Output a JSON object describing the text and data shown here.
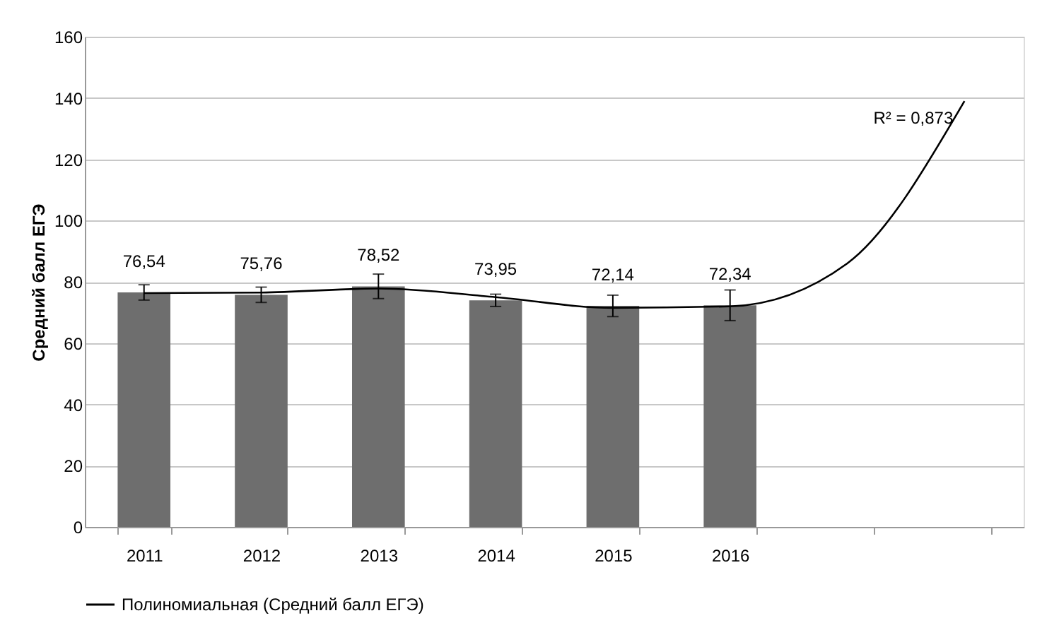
{
  "chart_data": {
    "type": "bar",
    "ylabel": "Средний балл ЕГЭ",
    "categories": [
      "2011",
      "2012",
      "2013",
      "2014",
      "2015",
      "2016",
      null,
      null
    ],
    "series": [
      {
        "color": "#6e6e6e",
        "values": [
          76.54,
          75.76,
          78.52,
          73.95,
          72.14,
          72.34,
          null,
          null
        ],
        "errors": [
          2.5,
          2.5,
          4,
          2,
          3.5,
          5,
          null,
          null
        ],
        "value_labels": [
          "76,54",
          "75,76",
          "78,52",
          "73,95",
          "72,14",
          "72,34",
          null,
          null
        ]
      },
      {
        "type": "line",
        "name": "Полиномиальная (Средний балл ЕГЭ)",
        "color": "#000000",
        "values": [
          76.3,
          76.5,
          77.8,
          75,
          71.5,
          72,
          86,
          139
        ]
      }
    ],
    "annotations": [
      "R² = 0,873"
    ],
    "ylim": [
      0,
      160
    ],
    "yticks": [
      0,
      20,
      40,
      60,
      80,
      100,
      120,
      140,
      160
    ],
    "grid": "y",
    "legend": "bottom"
  }
}
